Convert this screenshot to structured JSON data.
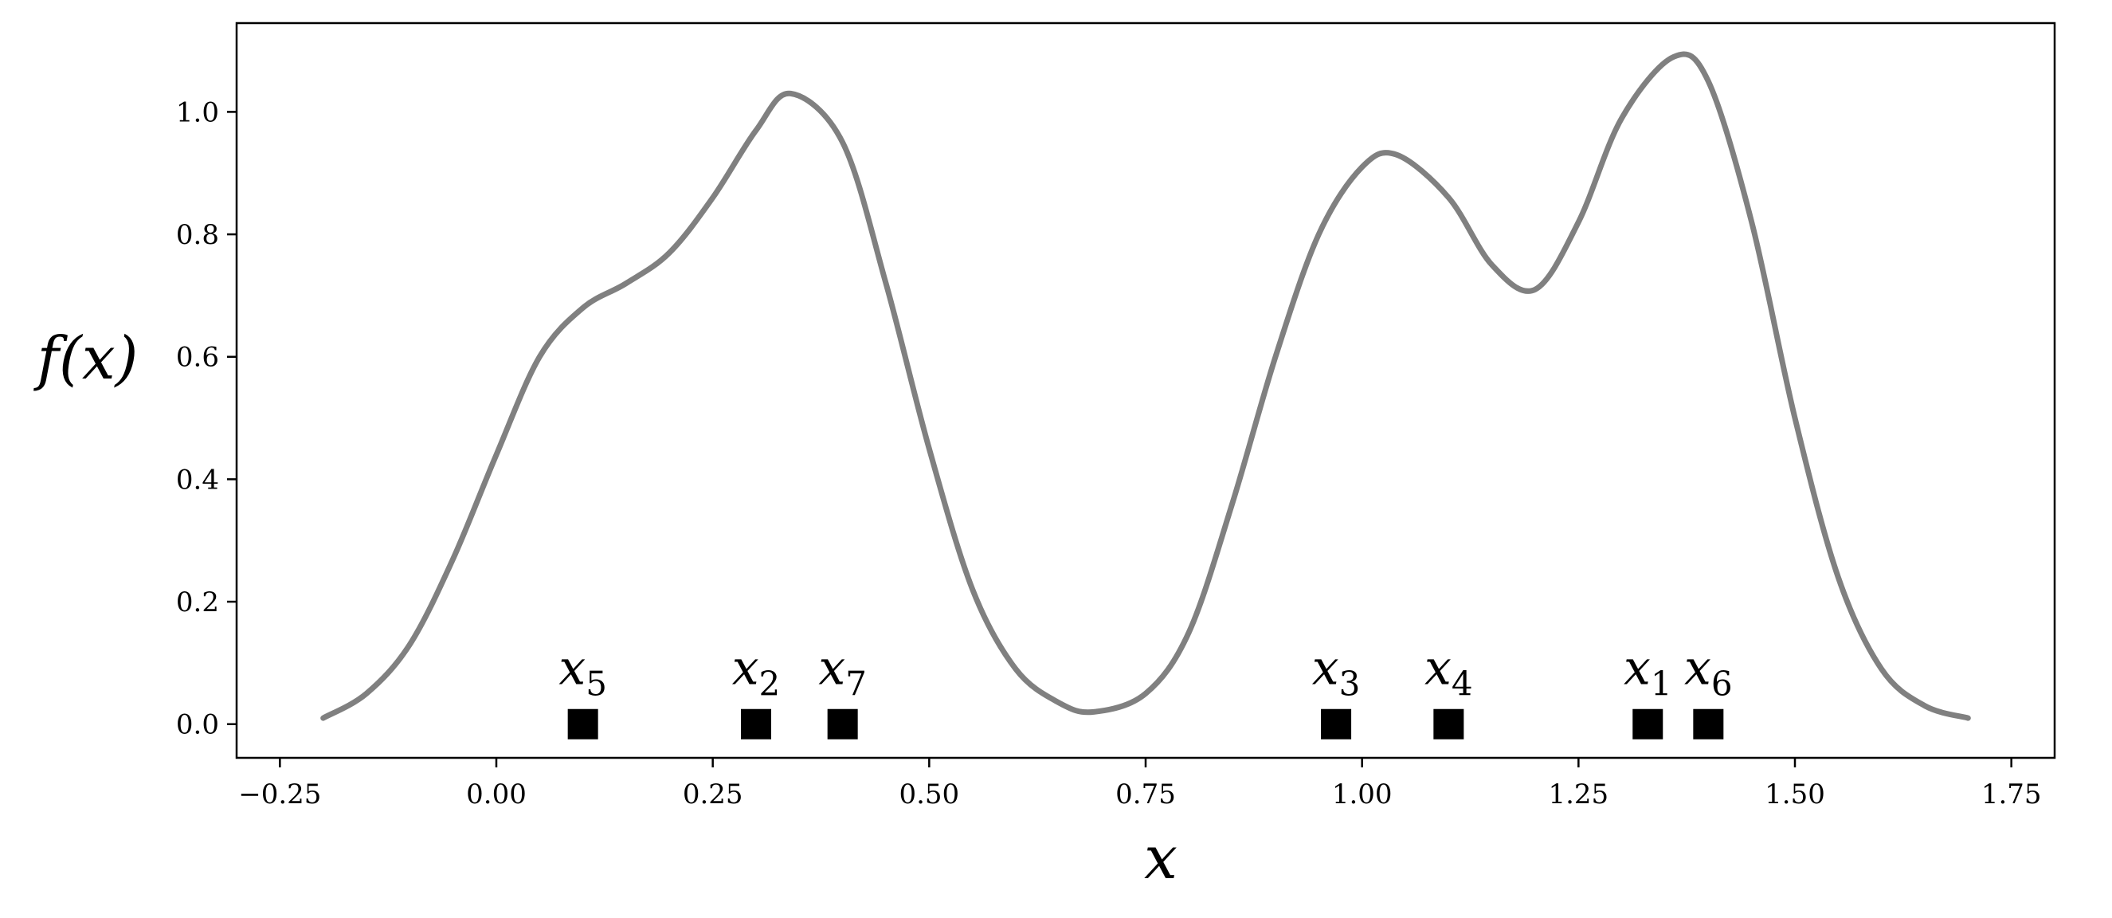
{
  "chart_data": {
    "type": "line",
    "title": "",
    "xlabel": "x",
    "ylabel": "f(x)",
    "xlim": [
      -0.3,
      1.8
    ],
    "ylim": [
      -0.055,
      1.145
    ],
    "grid": false,
    "legend": "none",
    "line_color": "#808080",
    "marker_color": "#000000",
    "x_ticks": [
      -0.25,
      0.0,
      0.25,
      0.5,
      0.75,
      1.0,
      1.25,
      1.5,
      1.75
    ],
    "x_tick_labels": [
      "−0.25",
      "0.00",
      "0.25",
      "0.50",
      "0.75",
      "1.00",
      "1.25",
      "1.50",
      "1.75"
    ],
    "y_ticks": [
      0.0,
      0.2,
      0.4,
      0.6,
      0.8,
      1.0
    ],
    "y_tick_labels": [
      "0.0",
      "0.2",
      "0.4",
      "0.6",
      "0.8",
      "1.0"
    ],
    "series": [
      {
        "x": [
          -0.2,
          -0.15,
          -0.1,
          -0.05,
          0.0,
          0.05,
          0.1,
          0.15,
          0.2,
          0.25,
          0.3,
          0.34,
          0.4,
          0.45,
          0.5,
          0.55,
          0.6,
          0.65,
          0.69,
          0.75,
          0.8,
          0.85,
          0.9,
          0.95,
          1.0,
          1.04,
          1.1,
          1.15,
          1.2,
          1.25,
          1.3,
          1.36,
          1.4,
          1.45,
          1.5,
          1.55,
          1.6,
          1.65,
          1.7
        ],
        "y": [
          0.01,
          0.05,
          0.13,
          0.27,
          0.44,
          0.6,
          0.68,
          0.72,
          0.77,
          0.86,
          0.97,
          1.03,
          0.95,
          0.72,
          0.45,
          0.22,
          0.09,
          0.035,
          0.02,
          0.05,
          0.15,
          0.36,
          0.6,
          0.8,
          0.91,
          0.93,
          0.86,
          0.75,
          0.71,
          0.82,
          0.99,
          1.09,
          1.05,
          0.82,
          0.5,
          0.24,
          0.09,
          0.03,
          0.01
        ]
      }
    ],
    "points": [
      {
        "x": 0.1,
        "y": 0.0,
        "label": "x",
        "sub": "5"
      },
      {
        "x": 0.3,
        "y": 0.0,
        "label": "x",
        "sub": "2"
      },
      {
        "x": 0.4,
        "y": 0.0,
        "label": "x",
        "sub": "7"
      },
      {
        "x": 0.97,
        "y": 0.0,
        "label": "x",
        "sub": "3"
      },
      {
        "x": 1.1,
        "y": 0.0,
        "label": "x",
        "sub": "4"
      },
      {
        "x": 1.33,
        "y": 0.0,
        "label": "x",
        "sub": "1"
      },
      {
        "x": 1.4,
        "y": 0.0,
        "label": "x",
        "sub": "6"
      }
    ]
  }
}
